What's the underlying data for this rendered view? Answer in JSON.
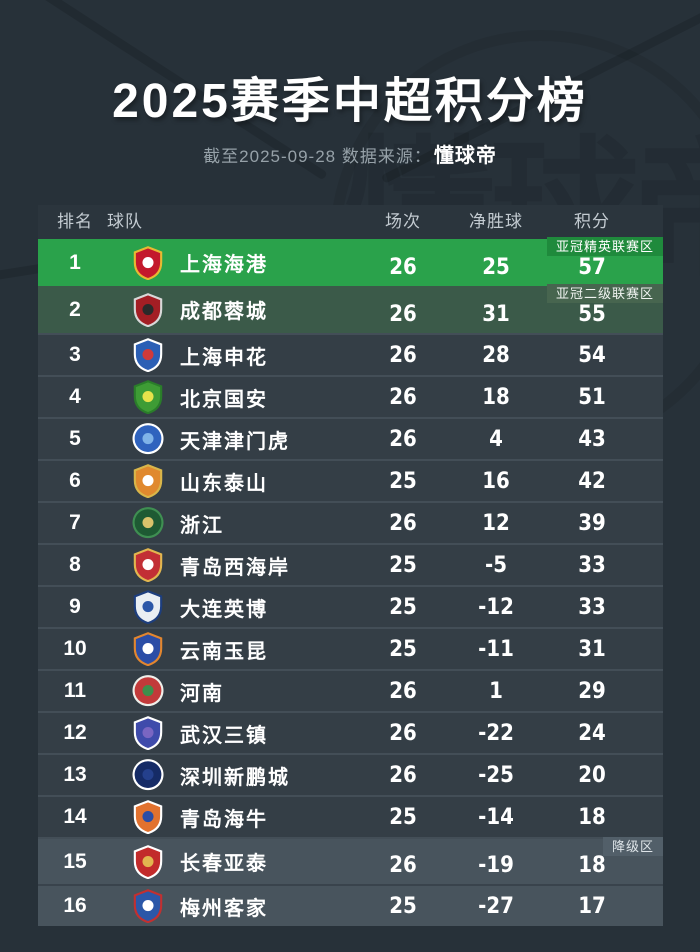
{
  "page": {
    "background": "#273139"
  },
  "header": {
    "title": "2025赛季中超积分榜",
    "subtitle_prefix": "截至2025-09-28 数据来源：",
    "source": "懂球帝",
    "watermark": "懂球帝"
  },
  "table": {
    "columns": {
      "rank": "排名",
      "team": "球队",
      "matches": "场次",
      "gd": "净胜球",
      "points": "积分"
    },
    "zones": {
      "acl_elite": {
        "label": "亚冠精英联赛区",
        "row_bg": "#2aa24b",
        "badge_bg": "#1f8a3c",
        "badge_fg": "#ffffff"
      },
      "acl_playoff": {
        "label": "亚冠二级联赛区",
        "row_bg": "#3b5a49",
        "badge_bg": "#47654f",
        "badge_fg": "#f0f4f1"
      },
      "relegation": {
        "label": "降级区",
        "row_bg": "#48545d",
        "badge_bg": "#525f69",
        "badge_fg": "#dee4e8"
      },
      "normal": {
        "row_bg": "#343e46"
      }
    },
    "separator_color": "#434e57",
    "separator_color_relegation": "#39434c",
    "rows": [
      {
        "rank": "1",
        "name": "上海海港",
        "matches": "26",
        "gd": "25",
        "points": "57",
        "zone": "acl_elite",
        "badge": "亚冠精英联赛区",
        "logo": {
          "shape": "shield",
          "c1": "#c3192c",
          "c2": "#e8b932",
          "c3": "#ffffff"
        }
      },
      {
        "rank": "2",
        "name": "成都蓉城",
        "matches": "26",
        "gd": "31",
        "points": "55",
        "zone": "acl_playoff",
        "badge": "亚冠二级联赛区",
        "logo": {
          "shape": "shield",
          "c1": "#a31e24",
          "c2": "#d8d8d8",
          "c3": "#2a2a2a"
        }
      },
      {
        "rank": "3",
        "name": "上海申花",
        "matches": "26",
        "gd": "28",
        "points": "54",
        "zone": "normal",
        "badge": "",
        "logo": {
          "shape": "shield",
          "c1": "#2b5fb5",
          "c2": "#ffffff",
          "c3": "#d03a3a"
        }
      },
      {
        "rank": "4",
        "name": "北京国安",
        "matches": "26",
        "gd": "18",
        "points": "51",
        "zone": "normal",
        "badge": "",
        "logo": {
          "shape": "shield",
          "c1": "#3e9c35",
          "c2": "#2a7d2a",
          "c3": "#e7e24b"
        }
      },
      {
        "rank": "5",
        "name": "天津津门虎",
        "matches": "26",
        "gd": "4",
        "points": "43",
        "zone": "normal",
        "badge": "",
        "logo": {
          "shape": "circle",
          "c1": "#2f63be",
          "c2": "#ffffff",
          "c3": "#7fb3e8"
        }
      },
      {
        "rank": "6",
        "name": "山东泰山",
        "matches": "25",
        "gd": "16",
        "points": "42",
        "zone": "normal",
        "badge": "",
        "logo": {
          "shape": "shield",
          "c1": "#e0892e",
          "c2": "#d9b64a",
          "c3": "#ffffff"
        }
      },
      {
        "rank": "7",
        "name": "浙江",
        "matches": "26",
        "gd": "12",
        "points": "39",
        "zone": "normal",
        "badge": "",
        "logo": {
          "shape": "circle",
          "c1": "#1e5a33",
          "c2": "#3f8f52",
          "c3": "#d9c26b"
        }
      },
      {
        "rank": "8",
        "name": "青岛西海岸",
        "matches": "25",
        "gd": "-5",
        "points": "33",
        "zone": "normal",
        "badge": "",
        "logo": {
          "shape": "shield",
          "c1": "#c22f35",
          "c2": "#e2b64f",
          "c3": "#ffffff"
        }
      },
      {
        "rank": "9",
        "name": "大连英博",
        "matches": "25",
        "gd": "-12",
        "points": "33",
        "zone": "normal",
        "badge": "",
        "logo": {
          "shape": "shield",
          "c1": "#e9eef3",
          "c2": "#1d3e7e",
          "c3": "#2b57a8"
        }
      },
      {
        "rank": "10",
        "name": "云南玉昆",
        "matches": "25",
        "gd": "-11",
        "points": "31",
        "zone": "normal",
        "badge": "",
        "logo": {
          "shape": "shield",
          "c1": "#2b4da6",
          "c2": "#e2862f",
          "c3": "#ffffff"
        }
      },
      {
        "rank": "11",
        "name": "河南",
        "matches": "26",
        "gd": "1",
        "points": "29",
        "zone": "normal",
        "badge": "",
        "logo": {
          "shape": "circle",
          "c1": "#c23a3a",
          "c2": "#efefea",
          "c3": "#3e8f4c"
        }
      },
      {
        "rank": "12",
        "name": "武汉三镇",
        "matches": "26",
        "gd": "-22",
        "points": "24",
        "zone": "normal",
        "badge": "",
        "logo": {
          "shape": "shield",
          "c1": "#3f4bab",
          "c2": "#ffffff",
          "c3": "#7a66c2"
        }
      },
      {
        "rank": "13",
        "name": "深圳新鹏城",
        "matches": "26",
        "gd": "-25",
        "points": "20",
        "zone": "normal",
        "badge": "",
        "logo": {
          "shape": "circle",
          "c1": "#152b66",
          "c2": "#ffffff",
          "c3": "#24408c"
        }
      },
      {
        "rank": "14",
        "name": "青岛海牛",
        "matches": "25",
        "gd": "-14",
        "points": "18",
        "zone": "normal",
        "badge": "",
        "logo": {
          "shape": "shield",
          "c1": "#e2722f",
          "c2": "#ffffff",
          "c3": "#2b4da6"
        }
      },
      {
        "rank": "15",
        "name": "长春亚泰",
        "matches": "26",
        "gd": "-19",
        "points": "18",
        "zone": "relegation",
        "badge": "降级区",
        "logo": {
          "shape": "shield",
          "c1": "#c22b2b",
          "c2": "#ffffff",
          "c3": "#e2b64f"
        }
      },
      {
        "rank": "16",
        "name": "梅州客家",
        "matches": "25",
        "gd": "-27",
        "points": "17",
        "zone": "relegation",
        "badge": "",
        "logo": {
          "shape": "shield",
          "c1": "#2b57a8",
          "c2": "#c23030",
          "c3": "#ffffff"
        }
      }
    ]
  },
  "chart_data": {
    "type": "table",
    "title": "2025赛季中超积分榜",
    "subtitle": "截至2025-09-28 数据来源：懂球帝",
    "columns": [
      "排名",
      "球队",
      "场次",
      "净胜球",
      "积分"
    ],
    "rows": [
      [
        1,
        "上海海港",
        26,
        25,
        57
      ],
      [
        2,
        "成都蓉城",
        26,
        31,
        55
      ],
      [
        3,
        "上海申花",
        26,
        28,
        54
      ],
      [
        4,
        "北京国安",
        26,
        18,
        51
      ],
      [
        5,
        "天津津门虎",
        26,
        4,
        43
      ],
      [
        6,
        "山东泰山",
        25,
        16,
        42
      ],
      [
        7,
        "浙江",
        26,
        12,
        39
      ],
      [
        8,
        "青岛西海岸",
        25,
        -5,
        33
      ],
      [
        9,
        "大连英博",
        25,
        -12,
        33
      ],
      [
        10,
        "云南玉昆",
        25,
        -11,
        31
      ],
      [
        11,
        "河南",
        26,
        1,
        29
      ],
      [
        12,
        "武汉三镇",
        26,
        -22,
        24
      ],
      [
        13,
        "深圳新鹏城",
        26,
        -25,
        20
      ],
      [
        14,
        "青岛海牛",
        25,
        -14,
        18
      ],
      [
        15,
        "长春亚泰",
        26,
        -19,
        18
      ],
      [
        16,
        "梅州客家",
        25,
        -27,
        17
      ]
    ],
    "annotations": [
      {
        "row": 1,
        "label": "亚冠精英联赛区"
      },
      {
        "row": 2,
        "label": "亚冠二级联赛区"
      },
      {
        "row": 15,
        "label": "降级区"
      }
    ],
    "legend_position": "none",
    "grid": false
  }
}
